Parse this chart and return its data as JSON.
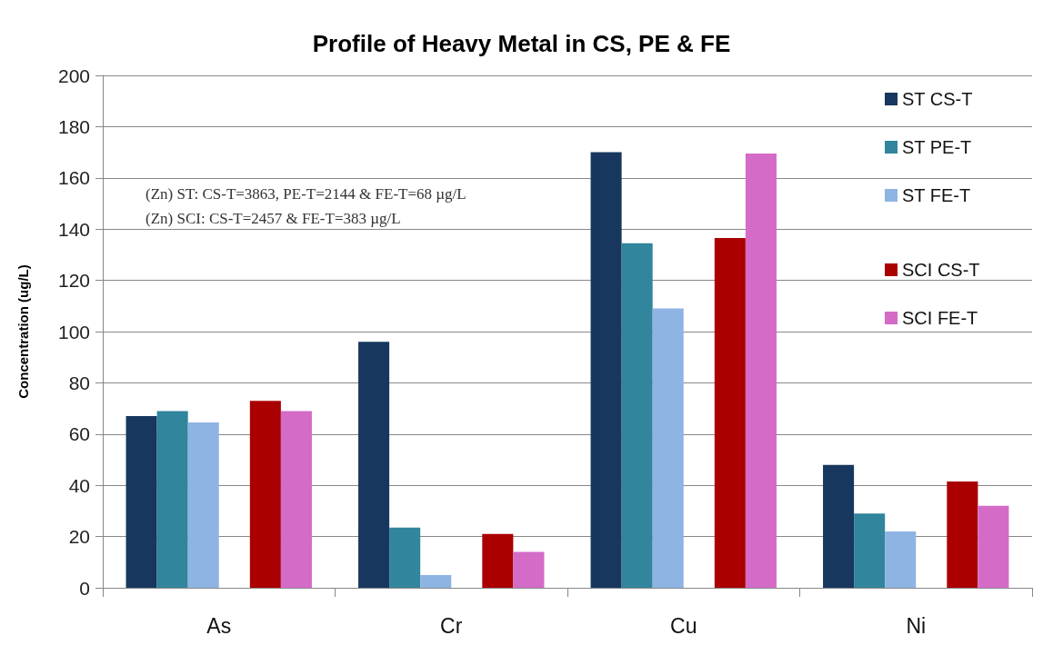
{
  "chart_data": {
    "type": "bar",
    "title": "Profile of Heavy Metal in CS, PE & FE",
    "ylabel": "Concentration (ug/L)",
    "annotations": [
      "(Zn) ST: CS-T=3863, PE-T=2144 & FE-T=68 µg/L",
      "(Zn) SCI: CS-T=2457 & FE-T=383 µg/L"
    ],
    "categories": [
      "As",
      "Cr",
      "Cu",
      "Ni"
    ],
    "series": [
      {
        "name": "ST CS-T",
        "color": "#17375e",
        "values": [
          67,
          96,
          170,
          48
        ]
      },
      {
        "name": "ST PE-T",
        "color": "#31859c",
        "values": [
          69,
          23.5,
          134.5,
          29
        ]
      },
      {
        "name": "ST FE-T",
        "color": "#8eb4e3",
        "values": [
          64.5,
          5,
          109,
          22
        ]
      },
      {
        "values": [
          null,
          null,
          null,
          null
        ]
      },
      {
        "name": "SCI CS-T",
        "color": "#aa0000",
        "values": [
          73,
          21,
          136.5,
          41.5
        ]
      },
      {
        "name": "SCI FE-T",
        "color": "#d46bc7",
        "values": [
          69,
          14,
          169.5,
          32
        ]
      }
    ],
    "ylim": [
      0,
      200
    ],
    "yticks": [
      0,
      20,
      40,
      60,
      80,
      100,
      120,
      140,
      160,
      180,
      200
    ],
    "grid": "y",
    "legend": "top right"
  }
}
